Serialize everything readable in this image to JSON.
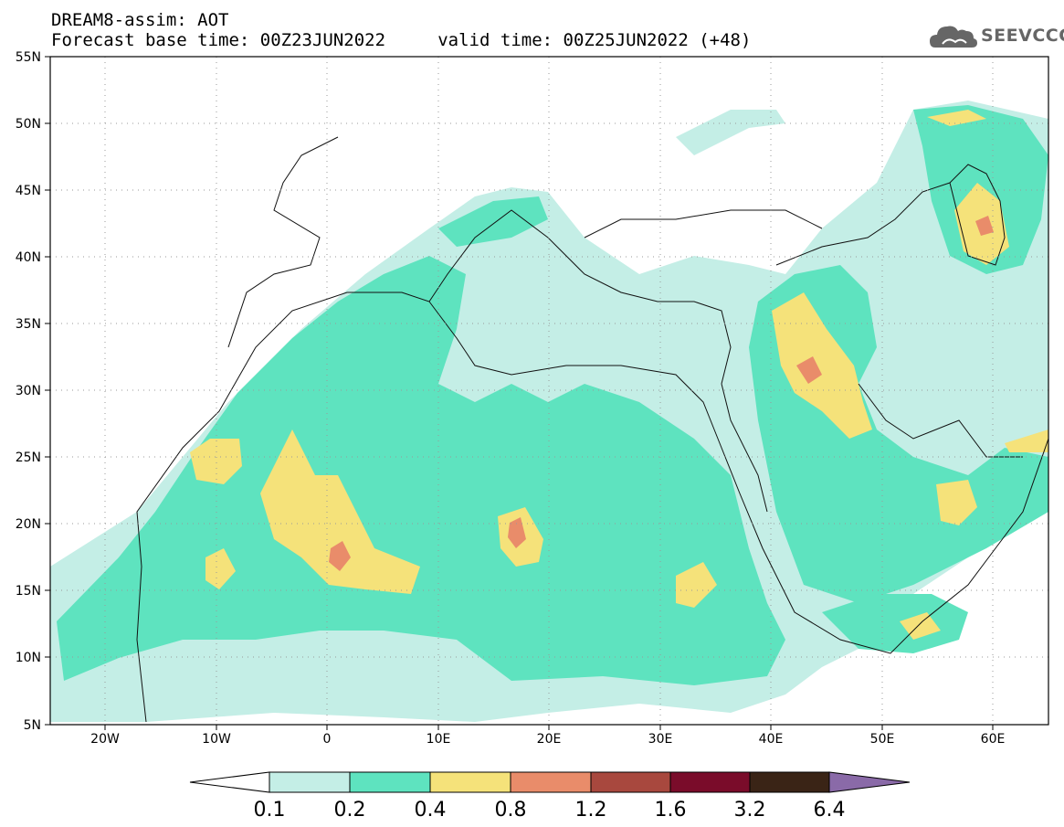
{
  "title": {
    "line1": "DREAM8-assim: AOT",
    "line2": "Forecast base time: 00Z23JUN2022     valid time: 00Z25JUN2022 (+48)"
  },
  "logo": {
    "text": "SEEVCCC",
    "icon": "cloud-icon"
  },
  "map": {
    "lon_range": [
      -25,
      65
    ],
    "lat_range": [
      5,
      55
    ],
    "lon_ticks": [
      {
        "value": -20,
        "label": "20W"
      },
      {
        "value": -10,
        "label": "10W"
      },
      {
        "value": 0,
        "label": "0"
      },
      {
        "value": 10,
        "label": "10E"
      },
      {
        "value": 20,
        "label": "20E"
      },
      {
        "value": 30,
        "label": "30E"
      },
      {
        "value": 40,
        "label": "40E"
      },
      {
        "value": 50,
        "label": "50E"
      },
      {
        "value": 60,
        "label": "60E"
      }
    ],
    "lat_ticks": [
      {
        "value": 55,
        "label": "55N"
      },
      {
        "value": 50,
        "label": "50N"
      },
      {
        "value": 45,
        "label": "45N"
      },
      {
        "value": 40,
        "label": "40N"
      },
      {
        "value": 35,
        "label": "35N"
      },
      {
        "value": 30,
        "label": "30N"
      },
      {
        "value": 25,
        "label": "25N"
      },
      {
        "value": 20,
        "label": "20N"
      },
      {
        "value": 15,
        "label": "15N"
      },
      {
        "value": 10,
        "label": "10N"
      },
      {
        "value": 5,
        "label": "5N"
      }
    ],
    "grid": "dotted"
  },
  "colorbar": {
    "levels": [
      "0.1",
      "0.2",
      "0.4",
      "0.8",
      "1.2",
      "1.6",
      "3.2",
      "6.4"
    ],
    "colors": [
      "#ffffff",
      "#c4eee6",
      "#5ee3bf",
      "#f5e27a",
      "#e98c6a",
      "#a8483e",
      "#7a0c2a",
      "#3a2416",
      "#8a6aa8"
    ]
  }
}
